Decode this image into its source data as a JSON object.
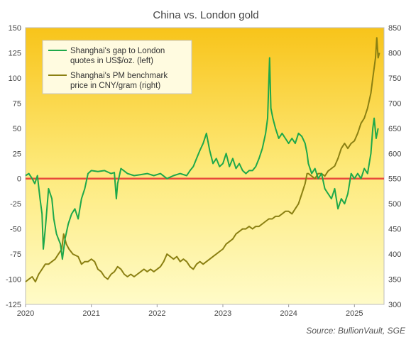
{
  "chart_data": {
    "type": "line",
    "title": "China vs. London gold",
    "source": "Source: BullionVault, SGE",
    "x_ticks": [
      "2020",
      "2021",
      "2022",
      "2023",
      "2024",
      "2025"
    ],
    "x_range": [
      2020.0,
      2025.45
    ],
    "left_axis": {
      "range": [
        -125,
        150
      ],
      "ticks": [
        -125,
        -100,
        -75,
        -50,
        -25,
        0,
        25,
        50,
        75,
        100,
        125,
        150
      ]
    },
    "right_axis": {
      "range": [
        300,
        850
      ],
      "ticks": [
        300,
        350,
        400,
        450,
        500,
        550,
        600,
        650,
        700,
        750,
        800,
        850
      ]
    },
    "zero_line": {
      "value": 0,
      "color": "#e84a3a"
    },
    "grid": false,
    "legend_position": "top-left",
    "background_gradient": [
      "#f8c41a",
      "#fde978",
      "#fffbc8"
    ],
    "series": [
      {
        "name": "Shanghai's gap to London quotes in US$/oz. (left)",
        "legend_lines": [
          "Shanghai's gap to London",
          "quotes in US$/oz. (left)"
        ],
        "axis": "left",
        "color": "#1ea84a",
        "points": [
          [
            2020.0,
            3
          ],
          [
            2020.05,
            5
          ],
          [
            2020.1,
            0
          ],
          [
            2020.14,
            -5
          ],
          [
            2020.18,
            3
          ],
          [
            2020.22,
            -20
          ],
          [
            2020.25,
            -35
          ],
          [
            2020.27,
            -70
          ],
          [
            2020.3,
            -50
          ],
          [
            2020.35,
            -10
          ],
          [
            2020.4,
            -20
          ],
          [
            2020.43,
            -40
          ],
          [
            2020.47,
            -55
          ],
          [
            2020.5,
            -60
          ],
          [
            2020.53,
            -65
          ],
          [
            2020.56,
            -80
          ],
          [
            2020.6,
            -60
          ],
          [
            2020.65,
            -45
          ],
          [
            2020.7,
            -35
          ],
          [
            2020.75,
            -30
          ],
          [
            2020.8,
            -40
          ],
          [
            2020.85,
            -20
          ],
          [
            2020.9,
            -10
          ],
          [
            2020.95,
            5
          ],
          [
            2021.0,
            8
          ],
          [
            2021.1,
            7
          ],
          [
            2021.2,
            8
          ],
          [
            2021.3,
            5
          ],
          [
            2021.35,
            6
          ],
          [
            2021.38,
            -20
          ],
          [
            2021.4,
            -5
          ],
          [
            2021.45,
            10
          ],
          [
            2021.55,
            5
          ],
          [
            2021.65,
            3
          ],
          [
            2021.75,
            4
          ],
          [
            2021.85,
            5
          ],
          [
            2021.95,
            3
          ],
          [
            2022.05,
            5
          ],
          [
            2022.15,
            0
          ],
          [
            2022.25,
            3
          ],
          [
            2022.35,
            5
          ],
          [
            2022.45,
            3
          ],
          [
            2022.5,
            8
          ],
          [
            2022.55,
            12
          ],
          [
            2022.6,
            20
          ],
          [
            2022.65,
            28
          ],
          [
            2022.7,
            35
          ],
          [
            2022.75,
            45
          ],
          [
            2022.8,
            28
          ],
          [
            2022.85,
            15
          ],
          [
            2022.9,
            20
          ],
          [
            2022.95,
            12
          ],
          [
            2023.0,
            15
          ],
          [
            2023.05,
            25
          ],
          [
            2023.1,
            12
          ],
          [
            2023.15,
            20
          ],
          [
            2023.2,
            10
          ],
          [
            2023.25,
            15
          ],
          [
            2023.3,
            8
          ],
          [
            2023.35,
            5
          ],
          [
            2023.4,
            8
          ],
          [
            2023.45,
            8
          ],
          [
            2023.5,
            12
          ],
          [
            2023.55,
            20
          ],
          [
            2023.6,
            30
          ],
          [
            2023.65,
            45
          ],
          [
            2023.68,
            60
          ],
          [
            2023.71,
            120
          ],
          [
            2023.73,
            70
          ],
          [
            2023.76,
            60
          ],
          [
            2023.8,
            50
          ],
          [
            2023.85,
            40
          ],
          [
            2023.9,
            45
          ],
          [
            2023.95,
            40
          ],
          [
            2024.0,
            35
          ],
          [
            2024.05,
            40
          ],
          [
            2024.1,
            35
          ],
          [
            2024.15,
            45
          ],
          [
            2024.2,
            42
          ],
          [
            2024.25,
            35
          ],
          [
            2024.28,
            25
          ],
          [
            2024.3,
            15
          ],
          [
            2024.35,
            5
          ],
          [
            2024.4,
            10
          ],
          [
            2024.45,
            0
          ],
          [
            2024.5,
            5
          ],
          [
            2024.55,
            -10
          ],
          [
            2024.6,
            -15
          ],
          [
            2024.65,
            -20
          ],
          [
            2024.7,
            -10
          ],
          [
            2024.75,
            -30
          ],
          [
            2024.8,
            -20
          ],
          [
            2024.85,
            -25
          ],
          [
            2024.9,
            -15
          ],
          [
            2024.95,
            5
          ],
          [
            2025.0,
            0
          ],
          [
            2025.05,
            5
          ],
          [
            2025.1,
            0
          ],
          [
            2025.15,
            10
          ],
          [
            2025.2,
            5
          ],
          [
            2025.25,
            25
          ],
          [
            2025.28,
            50
          ],
          [
            2025.3,
            60
          ],
          [
            2025.33,
            40
          ],
          [
            2025.36,
            50
          ]
        ]
      },
      {
        "name": "Shanghai's PM benchmark price in CNY/gram (right)",
        "legend_lines": [
          "Shanghai's PM  benchmark",
          "price in CNY/gram (right)"
        ],
        "axis": "right",
        "color": "#8b8012",
        "points": [
          [
            2020.0,
            345
          ],
          [
            2020.05,
            350
          ],
          [
            2020.1,
            355
          ],
          [
            2020.15,
            345
          ],
          [
            2020.2,
            360
          ],
          [
            2020.25,
            370
          ],
          [
            2020.3,
            380
          ],
          [
            2020.35,
            380
          ],
          [
            2020.4,
            385
          ],
          [
            2020.45,
            390
          ],
          [
            2020.5,
            400
          ],
          [
            2020.55,
            410
          ],
          [
            2020.58,
            440
          ],
          [
            2020.62,
            420
          ],
          [
            2020.66,
            410
          ],
          [
            2020.72,
            400
          ],
          [
            2020.8,
            395
          ],
          [
            2020.85,
            380
          ],
          [
            2020.9,
            385
          ],
          [
            2020.95,
            385
          ],
          [
            2021.0,
            390
          ],
          [
            2021.05,
            385
          ],
          [
            2021.1,
            370
          ],
          [
            2021.15,
            365
          ],
          [
            2021.2,
            355
          ],
          [
            2021.25,
            350
          ],
          [
            2021.3,
            360
          ],
          [
            2021.35,
            365
          ],
          [
            2021.4,
            375
          ],
          [
            2021.45,
            370
          ],
          [
            2021.5,
            360
          ],
          [
            2021.55,
            355
          ],
          [
            2021.6,
            360
          ],
          [
            2021.65,
            355
          ],
          [
            2021.7,
            360
          ],
          [
            2021.75,
            365
          ],
          [
            2021.8,
            370
          ],
          [
            2021.85,
            365
          ],
          [
            2021.9,
            370
          ],
          [
            2021.95,
            365
          ],
          [
            2022.0,
            370
          ],
          [
            2022.05,
            375
          ],
          [
            2022.1,
            385
          ],
          [
            2022.15,
            400
          ],
          [
            2022.2,
            395
          ],
          [
            2022.25,
            390
          ],
          [
            2022.3,
            395
          ],
          [
            2022.35,
            385
          ],
          [
            2022.4,
            390
          ],
          [
            2022.45,
            385
          ],
          [
            2022.5,
            375
          ],
          [
            2022.55,
            370
          ],
          [
            2022.6,
            380
          ],
          [
            2022.65,
            385
          ],
          [
            2022.7,
            380
          ],
          [
            2022.75,
            385
          ],
          [
            2022.8,
            390
          ],
          [
            2022.85,
            395
          ],
          [
            2022.9,
            400
          ],
          [
            2022.95,
            405
          ],
          [
            2023.0,
            410
          ],
          [
            2023.05,
            420
          ],
          [
            2023.1,
            425
          ],
          [
            2023.15,
            430
          ],
          [
            2023.2,
            440
          ],
          [
            2023.25,
            445
          ],
          [
            2023.3,
            450
          ],
          [
            2023.35,
            450
          ],
          [
            2023.4,
            455
          ],
          [
            2023.45,
            450
          ],
          [
            2023.5,
            455
          ],
          [
            2023.55,
            455
          ],
          [
            2023.6,
            460
          ],
          [
            2023.65,
            465
          ],
          [
            2023.7,
            470
          ],
          [
            2023.75,
            470
          ],
          [
            2023.8,
            475
          ],
          [
            2023.85,
            475
          ],
          [
            2023.9,
            480
          ],
          [
            2023.95,
            485
          ],
          [
            2024.0,
            485
          ],
          [
            2024.05,
            480
          ],
          [
            2024.1,
            490
          ],
          [
            2024.15,
            500
          ],
          [
            2024.2,
            520
          ],
          [
            2024.25,
            540
          ],
          [
            2024.28,
            560
          ],
          [
            2024.3,
            560
          ],
          [
            2024.35,
            555
          ],
          [
            2024.4,
            550
          ],
          [
            2024.45,
            560
          ],
          [
            2024.5,
            560
          ],
          [
            2024.55,
            555
          ],
          [
            2024.6,
            565
          ],
          [
            2024.65,
            570
          ],
          [
            2024.7,
            575
          ],
          [
            2024.75,
            590
          ],
          [
            2024.8,
            610
          ],
          [
            2024.85,
            620
          ],
          [
            2024.9,
            610
          ],
          [
            2024.95,
            620
          ],
          [
            2025.0,
            625
          ],
          [
            2025.05,
            640
          ],
          [
            2025.1,
            660
          ],
          [
            2025.15,
            670
          ],
          [
            2025.2,
            690
          ],
          [
            2025.25,
            720
          ],
          [
            2025.28,
            750
          ],
          [
            2025.3,
            770
          ],
          [
            2025.32,
            790
          ],
          [
            2025.34,
            830
          ],
          [
            2025.36,
            790
          ],
          [
            2025.38,
            800
          ]
        ]
      }
    ]
  }
}
